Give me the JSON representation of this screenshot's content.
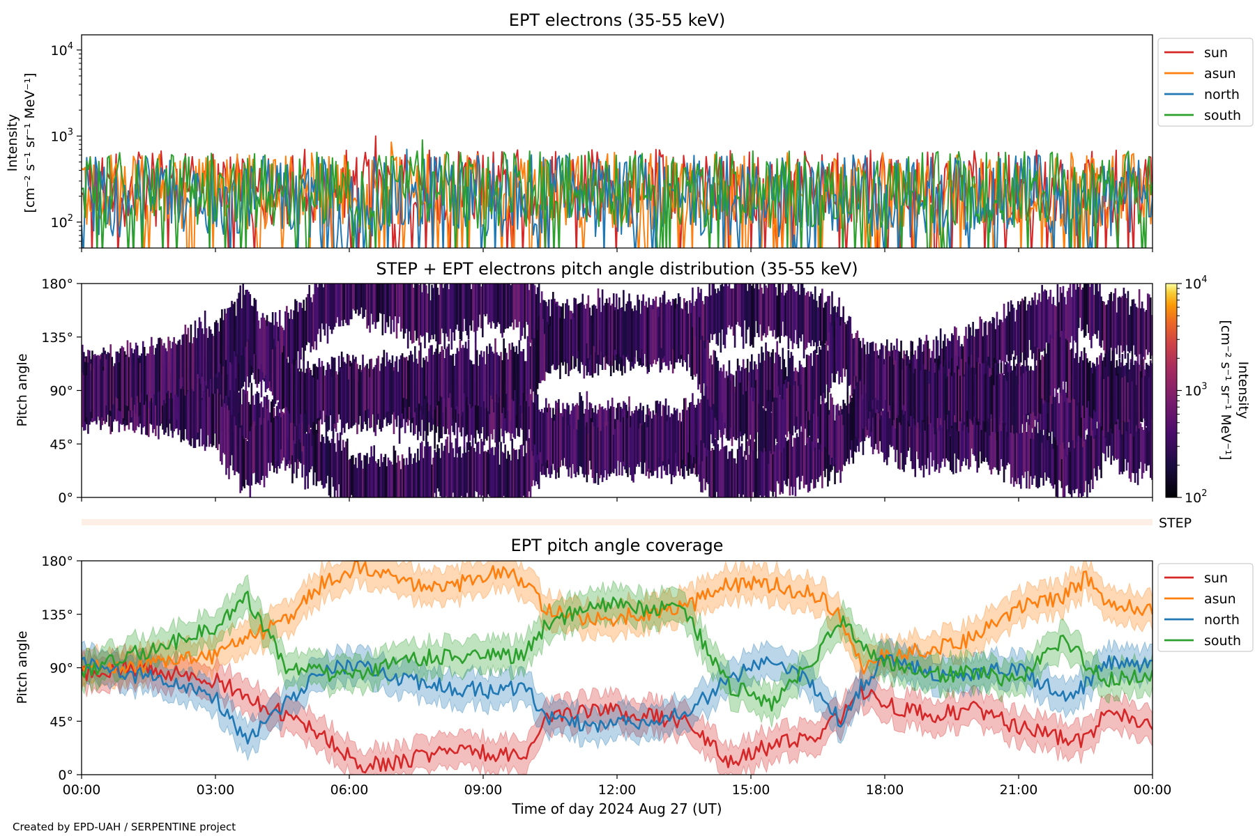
{
  "chart_data": [
    {
      "type": "line",
      "title": "EPT electrons (35-55 keV)",
      "ylabel_line1": "Intensity",
      "ylabel_line2": "[cm⁻² s⁻¹ sr⁻¹ MeV⁻¹]",
      "yscale": "log",
      "ylim": [
        50,
        15000
      ],
      "yticks": [
        {
          "value": 100,
          "base": "10",
          "exp": "2"
        },
        {
          "value": 1000,
          "base": "10",
          "exp": "3"
        },
        {
          "value": 10000,
          "base": "10",
          "exp": "4"
        }
      ],
      "xlim": [
        "2024-08-27 00:00",
        "2024-08-28 00:00"
      ],
      "legend": "outside-right",
      "series": [
        {
          "name": "sun",
          "color": "#d62728",
          "typical": 250,
          "spread": 0.28,
          "peak": 1000
        },
        {
          "name": "asun",
          "color": "#ff7f0e",
          "typical": 230,
          "spread": 0.28,
          "peak": 850
        },
        {
          "name": "north",
          "color": "#1f77b4",
          "typical": 200,
          "spread": 0.3,
          "peak": 700
        },
        {
          "name": "south",
          "color": "#2ca02c",
          "typical": 240,
          "spread": 0.28,
          "peak": 900
        }
      ]
    },
    {
      "type": "heatmap",
      "title": "STEP + EPT electrons pitch angle distribution (35-55 keV)",
      "ylabel": "Pitch angle",
      "ylim": [
        0,
        180
      ],
      "yticks": [
        "0°",
        "45°",
        "90°",
        "135°",
        "180°"
      ],
      "colorbar": {
        "label_line1": "Intensity",
        "label_line2": "[cm⁻² s⁻¹ sr⁻¹ MeV⁻¹]",
        "range": [
          100,
          10000
        ],
        "scale": "log",
        "colormap": "inferno",
        "ticks": [
          {
            "value": 100,
            "base": "10",
            "exp": "2"
          },
          {
            "value": 1000,
            "base": "10",
            "exp": "3"
          },
          {
            "value": 10000,
            "base": "10",
            "exp": "4"
          }
        ]
      }
    },
    {
      "type": "strip",
      "label": "STEP",
      "color": "#fdeee6"
    },
    {
      "type": "line",
      "title": "EPT pitch angle coverage",
      "ylabel": "Pitch angle",
      "ylim": [
        0,
        180
      ],
      "yticks": [
        "0°",
        "45°",
        "90°",
        "135°",
        "180°"
      ],
      "xlabel": "Time of day 2024 Aug 27 (UT)",
      "xticks": [
        "00:00",
        "03:00",
        "06:00",
        "09:00",
        "12:00",
        "15:00",
        "18:00",
        "21:00",
        "00:00"
      ],
      "legend": "outside-right",
      "x_hours": [
        0,
        1,
        2,
        3,
        3.7,
        4.6,
        5.5,
        6.3,
        7.3,
        8,
        9.2,
        9.9,
        10.4,
        11.5,
        12.5,
        13.5,
        14.5,
        15.5,
        16.5,
        17,
        17.5,
        18,
        19,
        20,
        21,
        22,
        22.5,
        23,
        24
      ],
      "series": [
        {
          "name": "sun",
          "color": "#d62728",
          "y": [
            85,
            90,
            85,
            80,
            65,
            50,
            30,
            8,
            12,
            20,
            18,
            15,
            45,
            55,
            50,
            45,
            12,
            25,
            35,
            48,
            70,
            60,
            50,
            55,
            40,
            30,
            28,
            55,
            40
          ]
        },
        {
          "name": "asun",
          "color": "#ff7f0e",
          "y": [
            90,
            92,
            95,
            100,
            115,
            130,
            165,
            175,
            160,
            155,
            170,
            165,
            140,
            130,
            135,
            140,
            160,
            160,
            150,
            135,
            90,
            100,
            105,
            115,
            140,
            150,
            165,
            145,
            140
          ]
        },
        {
          "name": "north",
          "color": "#1f77b4",
          "y": [
            95,
            85,
            80,
            65,
            30,
            60,
            90,
            90,
            80,
            75,
            70,
            75,
            50,
            40,
            45,
            50,
            80,
            100,
            70,
            45,
            75,
            100,
            85,
            85,
            90,
            65,
            75,
            95,
            90
          ]
        },
        {
          "name": "south",
          "color": "#2ca02c",
          "y": [
            85,
            100,
            110,
            125,
            150,
            90,
            85,
            85,
            95,
            100,
            100,
            100,
            125,
            145,
            140,
            140,
            75,
            60,
            100,
            130,
            110,
            95,
            85,
            85,
            80,
            115,
            95,
            80,
            85
          ]
        }
      ]
    }
  ],
  "footer_credit": "Created by EPD-UAH / SERPENTINE project"
}
